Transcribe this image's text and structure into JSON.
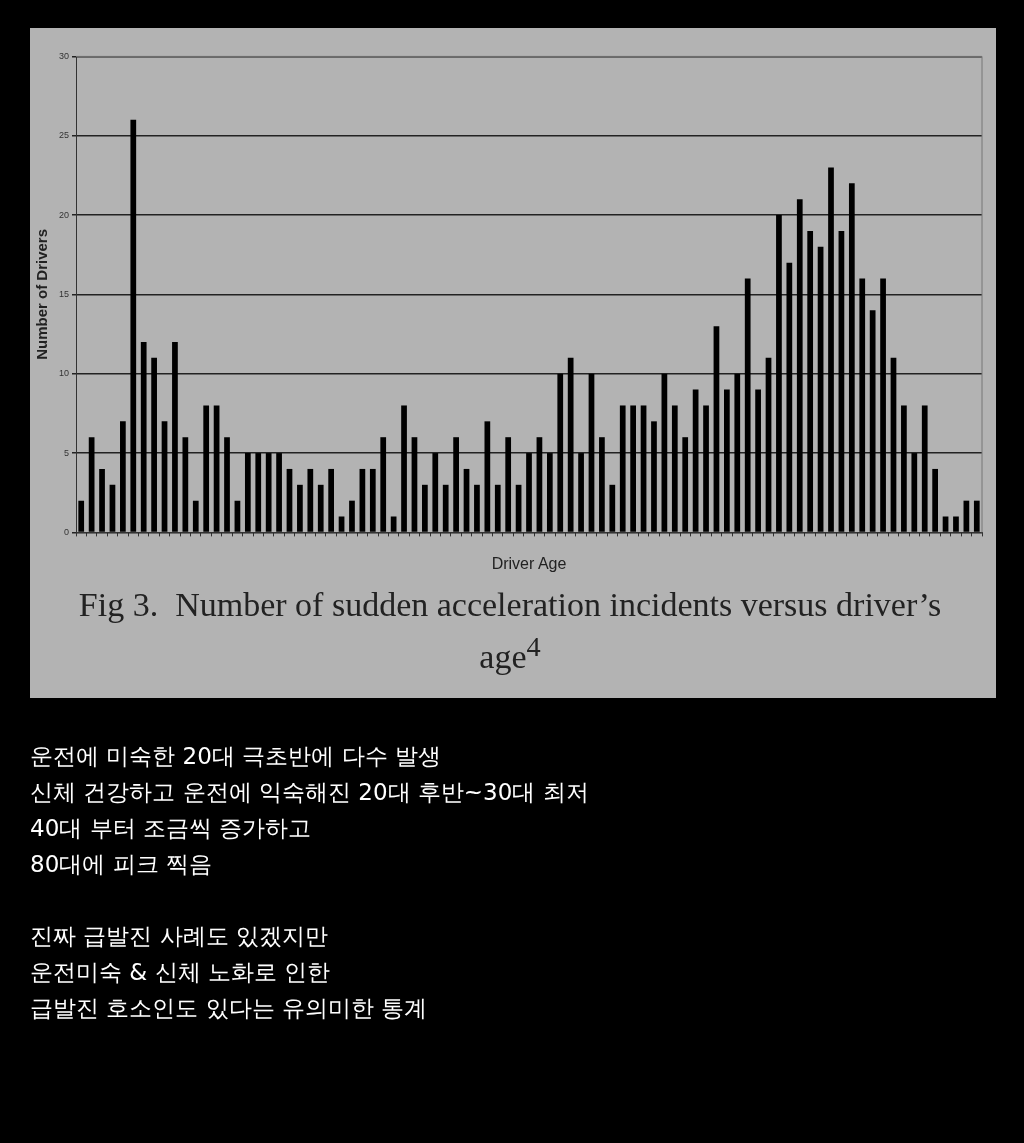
{
  "chart_data": {
    "type": "bar",
    "title": "Fig 3.  Number of sudden acceleration incidents versus driver’s age$^{4}$",
    "xlabel": "Driver Age",
    "ylabel": "Number of Drivers",
    "categories": [
      null,
      null,
      null,
      null,
      null,
      null,
      null,
      null,
      null,
      null,
      null,
      null,
      null,
      null,
      null,
      null,
      null,
      null,
      null,
      null,
      null,
      null,
      null,
      null,
      null,
      null,
      null,
      null,
      null,
      null,
      null,
      null,
      null,
      null,
      null,
      null,
      null,
      null,
      null,
      null,
      null,
      null,
      null,
      null,
      null,
      null,
      null,
      null,
      null,
      null,
      null,
      null,
      null,
      null,
      null,
      null,
      null,
      null,
      null,
      null,
      null,
      null,
      null,
      null,
      null,
      null,
      null,
      null,
      null,
      null,
      null,
      null,
      null,
      null,
      null,
      null,
      null,
      null,
      null,
      null,
      null,
      null,
      null,
      null,
      null,
      null,
      null
    ],
    "values": [
      2,
      6,
      4,
      3,
      7,
      26,
      12,
      11,
      7,
      12,
      6,
      2,
      8,
      8,
      6,
      2,
      5,
      5,
      5,
      5,
      4,
      3,
      4,
      3,
      4,
      1,
      2,
      4,
      4,
      6,
      1,
      8,
      6,
      3,
      5,
      3,
      6,
      4,
      3,
      7,
      3,
      6,
      3,
      5,
      6,
      5,
      10,
      11,
      5,
      10,
      6,
      3,
      8,
      8,
      8,
      7,
      10,
      8,
      6,
      9,
      8,
      13,
      9,
      10,
      16,
      9,
      11,
      20,
      17,
      21,
      19,
      18,
      23,
      19,
      22,
      16,
      14,
      16,
      11,
      8,
      5,
      8,
      4,
      1,
      1,
      2,
      2
    ],
    "color": "#000000",
    "ylim": [
      0,
      30
    ],
    "yticks": [
      0,
      5,
      10,
      15,
      20,
      25,
      30
    ],
    "grid": "y",
    "annotations": [
      "운전에 미숙한 20대 극초반에 다수 발생\n신체 건강하고 운전에 익숙해진 20대 후반~30대 최저\n40대 부터 조금씩 증가하고\n80대에 피크 찍음",
      "진짜 급발진 사례도 있겠지만\n운전미숙 & 신체 노화로 인한\n급발진 호소인도 있다는 유의미한 통계"
    ]
  }
}
